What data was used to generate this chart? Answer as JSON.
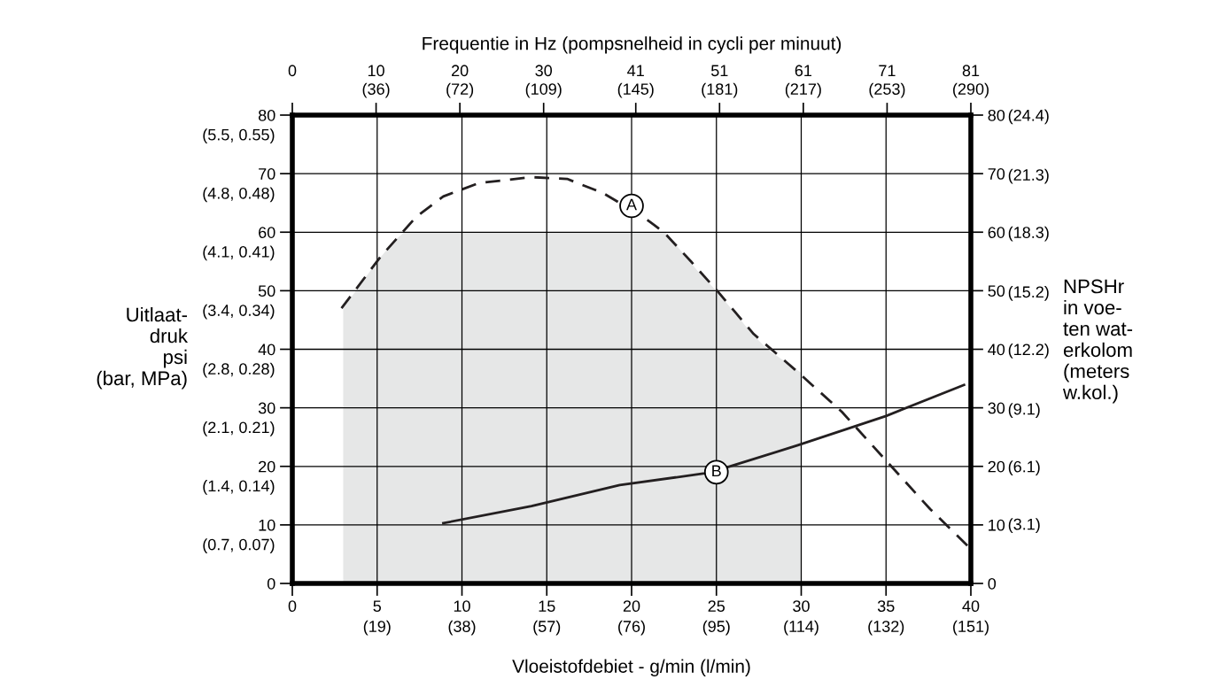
{
  "chart_data": {
    "type": "line",
    "xlabel": "Vloeistofdebiet - g/min (l/min)",
    "x2label": "Frequentie in Hz (pompsnelheid in cycli per minuut)",
    "ylabel": "Uitlaat-\ndruk\npsi\n(bar, MPa)",
    "y2label": "NPSHr\nin voe-\nten wat-\nerkolom\n(meters\nw.kol.)",
    "xlim": [
      0,
      40
    ],
    "xticks": [
      0,
      5,
      10,
      15,
      20,
      25,
      30,
      35,
      40
    ],
    "x2lim": [
      0,
      81
    ],
    "x2ticks": [
      0,
      10,
      20,
      30,
      41,
      51,
      61,
      71,
      81
    ],
    "ylim": [
      0,
      80
    ],
    "yticks": [
      0,
      10,
      20,
      30,
      40,
      50,
      60,
      70,
      80
    ],
    "y2lim": [
      0,
      80
    ],
    "y2ticks": [
      0,
      10,
      20,
      30,
      40,
      50,
      60,
      70,
      80
    ],
    "y3lim": [
      0,
      24.4
    ],
    "y3ticks": [
      {
        "value": 3.1,
        "label": "(3.1)"
      },
      {
        "value": 6.1,
        "label": "(6.1)"
      },
      {
        "value": 9.1,
        "label": "(9.1)"
      },
      {
        "value": 12.2,
        "label": "(12.2)"
      },
      {
        "value": 15.2,
        "label": "(15.2)"
      },
      {
        "value": 18.3,
        "label": "(18.3)"
      },
      {
        "value": 21.3,
        "label": "(21.3)"
      },
      {
        "value": 24.4,
        "label": "(24.4)"
      }
    ],
    "grid": true,
    "series": [
      {
        "type": "area",
        "color": "#e6e7e7",
        "x": [
          3,
          4,
          5,
          6,
          6.6,
          22,
          23,
          24,
          25,
          26,
          27,
          28,
          29,
          30
        ],
        "values": [
          47,
          51,
          55,
          58.5,
          60,
          60,
          56.5,
          53,
          50,
          46.5,
          43,
          40,
          38,
          36
        ]
      },
      {
        "color": "#231f20",
        "line_style": "dashed",
        "x": [
          2.9,
          5.2,
          7.3,
          8.9,
          11,
          14.1,
          16.2,
          18.3,
          19.3,
          20.7,
          21.9,
          23.5,
          25.1,
          27.2,
          29.8,
          32.4,
          35,
          37.6,
          40
        ],
        "values": [
          47,
          55.8,
          62.6,
          66.1,
          68.4,
          69.4,
          69.1,
          66.7,
          65,
          62.6,
          60,
          55,
          49.8,
          42.6,
          36.1,
          29.3,
          21,
          12.7,
          5.9
        ]
      },
      {
        "color": "#231f20",
        "line_style": "solid",
        "x": [
          8.9,
          14.1,
          19.3,
          24.3,
          25.7,
          29.8,
          35,
          39.6
        ],
        "values": [
          10.3,
          13.2,
          16.8,
          18.8,
          19.9,
          23.6,
          28.6,
          33.9
        ]
      }
    ],
    "annotations": [
      {
        "text": "A",
        "x": 20,
        "y": 64.5
      },
      {
        "text": "B",
        "x": 25,
        "y": 19
      },
      "(19)",
      "(38)",
      "(57)",
      "(76)",
      "(95)",
      "(114)",
      "(132)",
      "(151)",
      "(36)",
      "(72)",
      "(109)",
      "(145)",
      "(181)",
      "(217)",
      "(253)",
      "(290)",
      "(0.7, 0.07)",
      "(1.4, 0.14)",
      "(2.1, 0.21)",
      "(2.8, 0.28)",
      "(3.4, 0.34)",
      "(4.1, 0.41)",
      "(4.8, 0.48)",
      "(5.5, 0.55)"
    ]
  }
}
